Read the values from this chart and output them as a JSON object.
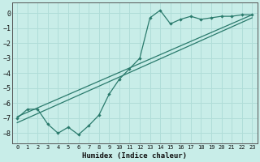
{
  "xlabel": "Humidex (Indice chaleur)",
  "ylabel": "",
  "xlim": [
    -0.5,
    23.5
  ],
  "ylim": [
    -8.7,
    0.7
  ],
  "xticks": [
    0,
    1,
    2,
    3,
    4,
    5,
    6,
    7,
    8,
    9,
    10,
    11,
    12,
    13,
    14,
    15,
    16,
    17,
    18,
    19,
    20,
    21,
    22,
    23
  ],
  "yticks": [
    0,
    -1,
    -2,
    -3,
    -4,
    -5,
    -6,
    -7,
    -8
  ],
  "bg_color": "#c8ede8",
  "line_color": "#2a7a6c",
  "grid_color": "#b0ddd8",
  "line1_x": [
    0,
    1,
    2,
    3,
    4,
    5,
    6,
    7,
    8,
    9,
    10,
    11,
    12,
    13,
    14,
    15,
    16,
    17,
    18,
    19,
    20,
    21,
    22,
    23
  ],
  "line1_y": [
    -7.0,
    -6.4,
    -6.4,
    -7.4,
    -8.0,
    -7.6,
    -8.1,
    -7.5,
    -6.8,
    -5.4,
    -4.4,
    -3.7,
    -3.0,
    -0.3,
    0.2,
    -0.7,
    -0.4,
    -0.2,
    -0.4,
    -0.3,
    -0.2,
    -0.2,
    -0.1,
    -0.1
  ],
  "line2_x": [
    0,
    23
  ],
  "line2_y": [
    -6.9,
    -0.1
  ],
  "line3_x": [
    0,
    23
  ],
  "line3_y": [
    -7.3,
    -0.3
  ]
}
